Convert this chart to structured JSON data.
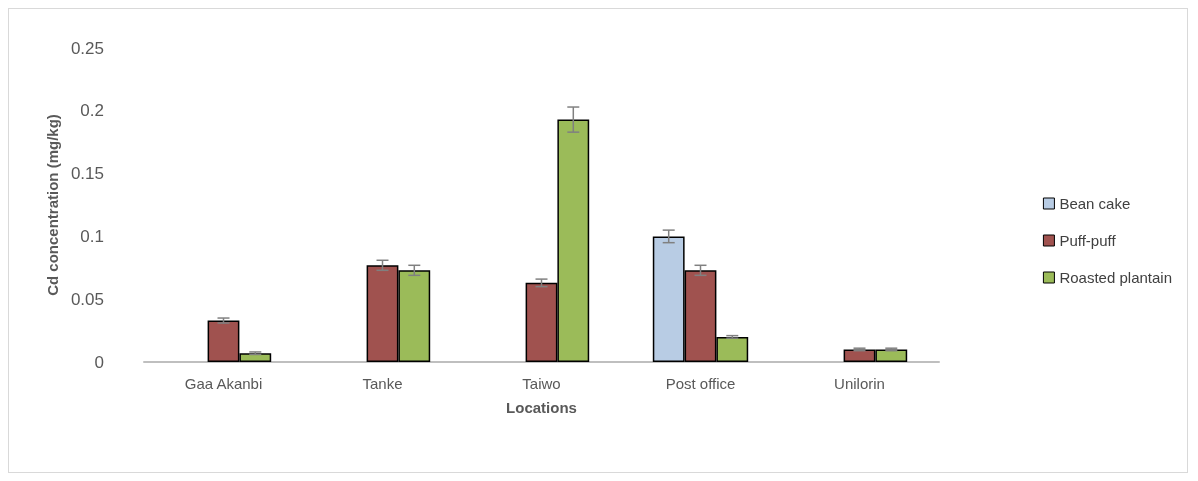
{
  "chart_data": {
    "type": "bar",
    "xlabel": "Locations",
    "ylabel": "Cd concentration (mg/kg)",
    "categories": [
      "Gaa Akanbi",
      "Tanke",
      "Taiwo",
      "Post office",
      "Unilorin"
    ],
    "series": [
      {
        "name": "Bean cake",
        "color": "#b8cce4",
        "values": [
          null,
          null,
          null,
          0.1,
          null
        ],
        "errors": [
          null,
          null,
          null,
          0.005,
          null
        ]
      },
      {
        "name": "Puff-puff",
        "color": "#a0524f",
        "values": [
          0.033,
          0.077,
          0.063,
          0.073,
          0.01
        ],
        "errors": [
          0.002,
          0.004,
          0.003,
          0.004,
          0.001
        ]
      },
      {
        "name": "Roasted plantain",
        "color": "#9bbb59",
        "values": [
          0.007,
          0.073,
          0.193,
          0.02,
          0.01
        ],
        "errors": [
          0.001,
          0.004,
          0.01,
          0.001,
          0.001
        ]
      }
    ],
    "ylim": [
      0,
      0.25
    ],
    "yticks": [
      0,
      0.05,
      0.1,
      0.15,
      0.2,
      0.25
    ],
    "grid": false,
    "legend": "right"
  }
}
